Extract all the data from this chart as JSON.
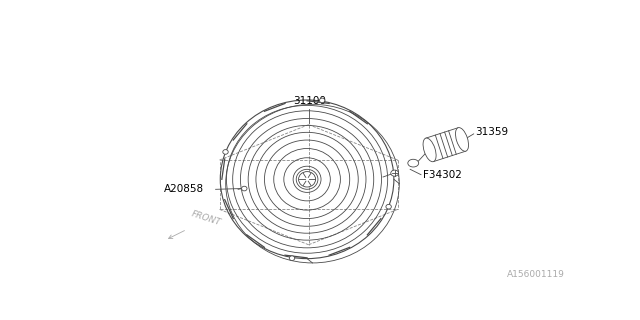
{
  "bg_color": "#ffffff",
  "line_color": "#4a4a4a",
  "label_color": "#000000",
  "diagram_id": "A156001119",
  "front_label": "FRONT",
  "label_fontsize": 7.5,
  "id_fontsize": 6.5
}
